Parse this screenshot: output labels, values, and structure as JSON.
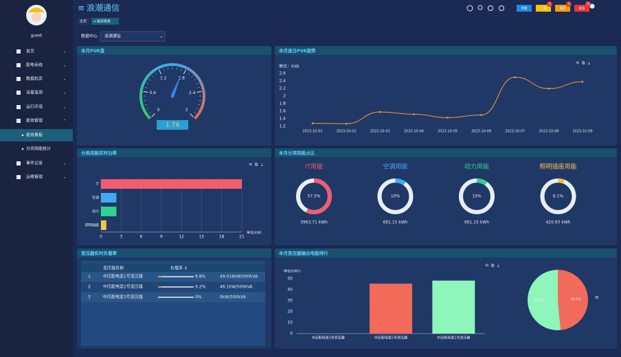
{
  "header": {
    "title": "浪潮通信",
    "tabs": [
      "主页",
      "能效看板"
    ],
    "buttons": [
      {
        "label": "预警",
        "color": "#1e88e5"
      },
      {
        "label": "一般",
        "color": "#f4c20d",
        "badge": 0
      },
      {
        "label": "重要",
        "color": "#f39c12",
        "badge": 0
      },
      {
        "label": "紧急",
        "color": "#e53935",
        "badge": 74
      }
    ]
  },
  "sidebar": {
    "user": "guest",
    "menu": [
      "首页",
      "配电系统",
      "数据机房",
      "设备监测",
      "运行环境",
      "能效管理",
      "事件记录",
      "运维管理"
    ],
    "submenu": [
      "能效看板",
      "分项用能统计"
    ]
  },
  "filter": {
    "label": "数据中心",
    "value": "浪潮通信"
  },
  "chart_data": [
    {
      "type": "gauge",
      "title": "本月PUE值",
      "value": 1.74,
      "ylim": [
        0,
        3
      ],
      "yticks": [
        0,
        0.6,
        1.2,
        1.8,
        2.4,
        3
      ]
    },
    {
      "type": "line",
      "title": "本月逐日PUE趋势",
      "unit": "单位：kVA",
      "x": [
        "2023-10-01",
        "2023-10-02",
        "2023-10-03",
        "2023-10-04",
        "2023-10-05",
        "2023-10-06",
        "2023-10-07",
        "2023-10-08",
        "2023-10-09"
      ],
      "values": [
        1.28,
        1.27,
        1.58,
        1.52,
        1.43,
        1.5,
        2.5,
        2.2,
        2.38
      ],
      "color": "#f0a030",
      "ylim": [
        1.2,
        2.6
      ],
      "yticks": [
        1.2,
        1.4,
        1.6,
        1.8,
        2,
        2.2,
        2.4,
        2.6
      ]
    },
    {
      "type": "hbar",
      "title": "分类用能实时功率",
      "unit": "单位(kW)",
      "categories": [
        "IT",
        "空调",
        "动力",
        "照明插座"
      ],
      "values": [
        21,
        2.3,
        2.3,
        0.8
      ],
      "colors": [
        "#f25c6e",
        "#3fa9f5",
        "#2fd391",
        "#f6c445"
      ],
      "xlim": [
        0,
        21
      ],
      "xticks": [
        0,
        3,
        6,
        9,
        12,
        15,
        18,
        21
      ]
    },
    {
      "type": "donut",
      "title": "本月分项用能占比",
      "categories": [
        "IT用能",
        "空调用能",
        "动力用能",
        "照明插座用能"
      ],
      "values": [
        57.5,
        10,
        10,
        6.1
      ],
      "value_labels": [
        "57.5%",
        "10%",
        "10%",
        "6.1%"
      ],
      "energy": [
        "3963.71 kWh",
        "691.15 kWh",
        "691.15 kWh",
        "420.93 kWh"
      ],
      "colors": [
        "#f25c6e",
        "#3fa9f5",
        "#2fd391",
        "#f6c445"
      ]
    },
    {
      "type": "bar",
      "title": "本月变压器输出电能排行",
      "unit": "单位(kWh)",
      "categories": [
        "中压配电室3号变压器",
        "中压配电室2号变压器",
        "中压配电室1号变压器"
      ],
      "values": [
        0,
        45.5,
        48.3
      ],
      "colors": [
        "#f6c445",
        "#f26a5a",
        "#8ef5bb"
      ],
      "ylim": [
        0,
        50
      ],
      "yticks": [
        0,
        10,
        20,
        30,
        40,
        50
      ],
      "pie": {
        "values": [
          0,
          48.5,
          51.5
        ],
        "value_labels": [
          "0%",
          "48.5%",
          "51.5%"
        ]
      }
    }
  ],
  "table": {
    "title": "变压器实时负载率",
    "columns": [
      "变压器名称",
      "负载率 ⇕"
    ],
    "rows": [
      {
        "index": "1",
        "name": "中压配电室1号变压器",
        "rate": 9.8,
        "rate_label": "9.8%",
        "load": "49.016kW/500kVA"
      },
      {
        "index": "2",
        "name": "中压配电室2号变压器",
        "rate": 9.2,
        "rate_label": "9.2%",
        "load": "46.1kW/500kVA"
      },
      {
        "index": "3",
        "name": "中压配电室3号变压器",
        "rate": 0,
        "rate_label": "0%",
        "load": "0kW/500kVA"
      }
    ]
  }
}
